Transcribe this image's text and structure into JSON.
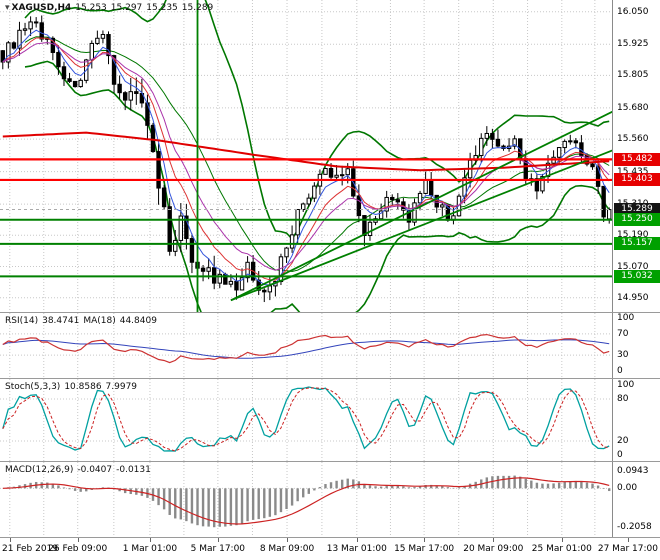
{
  "window": {
    "title": "XAGUSD,H4 chart"
  },
  "header": {
    "collapse_icon": "▾",
    "symbol": "XAGUSD,H4",
    "open": "15.253",
    "high": "15.297",
    "low": "15.235",
    "close": "15.289"
  },
  "indicator_headers": {
    "rsi": {
      "name": "RSI(14)",
      "value": "38.4741",
      "ma_name": "MA(18)",
      "ma_value": "44.8409"
    },
    "stoch": {
      "name": "Stoch(5,3,3)",
      "value": "10.8586",
      "signal": "7.9979"
    },
    "macd": {
      "name": "MACD(12,26,9)",
      "value": "-0.0407",
      "signal": "-0.0131"
    }
  },
  "colors": {
    "bg": "#ffffff",
    "grid": "#c8c8c8",
    "panel_border": "#9a9a9a",
    "candle_outline": "#000000",
    "bull_fill": "#ffffff",
    "bear_fill": "#000000",
    "bollinger": "#007700",
    "trend": "#008000",
    "level_red": "#ff0000",
    "level_green": "#008000",
    "current_line": "#aaaaaa",
    "ma_slow": "#e00000",
    "ma_fast1": "#3355dd",
    "ma_fast2": "#dd3333",
    "ma_fast3": "#aa33aa",
    "rsi_line": "#cc3333",
    "rsi_ma": "#3344bb",
    "stoch_main": "#00a0a0",
    "stoch_signal": "#cc2222",
    "macd_hist": "#8a8a8a",
    "macd_signal": "#cc2222",
    "badge_red": "#e60000",
    "badge_green": "#00a000",
    "badge_black": "#141414",
    "text": "#000000"
  },
  "chart_data": {
    "type": "candlestick",
    "symbol": "XAGUSD",
    "timeframe": "H4",
    "title": "XAGUSD,H4 15.253 15.297 15.235 15.289",
    "ylim": [
      14.895,
      16.095
    ],
    "price_ticks": [
      "16.050",
      "15.925",
      "15.805",
      "15.680",
      "15.560",
      "15.435",
      "15.310",
      "15.190",
      "15.070",
      "14.950"
    ],
    "time_labels": [
      {
        "text": "21 Feb 2019",
        "f": 0.016
      },
      {
        "text": "26 Feb 09:00",
        "f": 0.127
      },
      {
        "text": "1 Mar 01:00",
        "f": 0.245
      },
      {
        "text": "5 Mar 17:00",
        "f": 0.356
      },
      {
        "text": "8 Mar 09:00",
        "f": 0.469
      },
      {
        "text": "13 Mar 01:00",
        "f": 0.583
      },
      {
        "text": "15 Mar 17:00",
        "f": 0.693
      },
      {
        "text": "20 Mar 09:00",
        "f": 0.806
      },
      {
        "text": "25 Mar 01:00",
        "f": 0.918
      },
      {
        "text": "27 Mar 17:00",
        "f": 1.026
      }
    ],
    "n_candles": 110,
    "current_bar": {
      "open": 15.253,
      "high": 15.297,
      "low": 15.235,
      "close": 15.289
    },
    "close_keyframes": [
      [
        0,
        15.88
      ],
      [
        3,
        15.96
      ],
      [
        6,
        16.0
      ],
      [
        9,
        15.9
      ],
      [
        12,
        15.76
      ],
      [
        14,
        15.8
      ],
      [
        16,
        15.9
      ],
      [
        18,
        15.94
      ],
      [
        20,
        15.8
      ],
      [
        22,
        15.7
      ],
      [
        24,
        15.77
      ],
      [
        26,
        15.62
      ],
      [
        28,
        15.34
      ],
      [
        30,
        15.17
      ],
      [
        32,
        15.24
      ],
      [
        34,
        15.11
      ],
      [
        36,
        15.07
      ],
      [
        38,
        15.02
      ],
      [
        40,
        15.0
      ],
      [
        42,
        14.98
      ],
      [
        44,
        15.06
      ],
      [
        46,
        15.01
      ],
      [
        48,
        14.97
      ],
      [
        50,
        15.1
      ],
      [
        52,
        15.22
      ],
      [
        54,
        15.31
      ],
      [
        56,
        15.38
      ],
      [
        58,
        15.43
      ],
      [
        60,
        15.41
      ],
      [
        62,
        15.45
      ],
      [
        64,
        15.28
      ],
      [
        65,
        15.19
      ],
      [
        67,
        15.28
      ],
      [
        69,
        15.33
      ],
      [
        71,
        15.3
      ],
      [
        73,
        15.26
      ],
      [
        75,
        15.33
      ],
      [
        76,
        15.38
      ],
      [
        78,
        15.31
      ],
      [
        80,
        15.26
      ],
      [
        82,
        15.32
      ],
      [
        84,
        15.46
      ],
      [
        86,
        15.54
      ],
      [
        88,
        15.58
      ],
      [
        90,
        15.52
      ],
      [
        92,
        15.55
      ],
      [
        94,
        15.42
      ],
      [
        96,
        15.38
      ],
      [
        98,
        15.45
      ],
      [
        100,
        15.52
      ],
      [
        102,
        15.56
      ],
      [
        104,
        15.5
      ],
      [
        106,
        15.44
      ],
      [
        107,
        15.37
      ],
      [
        108,
        15.26
      ],
      [
        109,
        15.289
      ]
    ],
    "volatility_keyframes": [
      [
        0,
        0.04
      ],
      [
        20,
        0.05
      ],
      [
        26,
        0.09
      ],
      [
        34,
        0.07
      ],
      [
        44,
        0.05
      ],
      [
        50,
        0.07
      ],
      [
        54,
        0.05
      ],
      [
        64,
        0.06
      ],
      [
        70,
        0.04
      ],
      [
        83,
        0.05
      ],
      [
        95,
        0.045
      ],
      [
        109,
        0.035
      ]
    ],
    "levels": [
      {
        "label": "15.482",
        "price": 15.482,
        "type": "resistance",
        "badge": "red"
      },
      {
        "label": "15.403",
        "price": 15.403,
        "type": "resistance",
        "badge": "red"
      },
      {
        "label": "15.289",
        "price": 15.289,
        "type": "current-price",
        "badge": "black"
      },
      {
        "label": "15.250",
        "price": 15.25,
        "type": "support",
        "badge": "green"
      },
      {
        "label": "15.157",
        "price": 15.157,
        "type": "support",
        "badge": "green"
      },
      {
        "label": "15.032",
        "price": 15.032,
        "type": "support",
        "badge": "green"
      }
    ],
    "overlays": {
      "bollinger": {
        "period": 20,
        "deviation": 2
      },
      "ma_slow_keyframes": [
        [
          0,
          15.57
        ],
        [
          15,
          15.585
        ],
        [
          28,
          15.555
        ],
        [
          45,
          15.5
        ],
        [
          60,
          15.455
        ],
        [
          75,
          15.44
        ],
        [
          90,
          15.45
        ],
        [
          109,
          15.475
        ]
      ],
      "fast_ma_periods": [
        5,
        9,
        14
      ],
      "trendlines": [
        {
          "from": [
            41,
            14.94
          ],
          "to": [
            110,
            15.52
          ]
        },
        {
          "from": [
            41,
            14.94
          ],
          "to": [
            110,
            15.67
          ]
        }
      ],
      "vline_index": 35
    },
    "indicators": {
      "rsi": {
        "period": 14,
        "ma_period": 18,
        "scale_ticks": [
          {
            "v": 100,
            "label": "100"
          },
          {
            "v": 70,
            "label": "70"
          },
          {
            "v": 30,
            "label": "30"
          },
          {
            "v": 0,
            "label": "0"
          }
        ],
        "dotted": [
          70,
          30
        ]
      },
      "stoch": {
        "k_period": 5,
        "slowing": 3,
        "d_period": 3,
        "scale_ticks": [
          {
            "v": 100,
            "label": "100"
          },
          {
            "v": 80,
            "label": "80"
          },
          {
            "v": 20,
            "label": "20"
          },
          {
            "v": 0,
            "label": "0"
          }
        ],
        "dotted": [
          80,
          20
        ]
      },
      "macd": {
        "fast": 12,
        "slow": 26,
        "signal": 9,
        "ylim": [
          -0.24,
          0.12
        ],
        "scale_ticks": [
          {
            "v": 0.0943,
            "label": "0.0943"
          },
          {
            "v": 0,
            "label": "0.00"
          },
          {
            "v": -0.2058,
            "label": "-0.2058"
          }
        ],
        "dotted": [
          0
        ]
      }
    }
  }
}
